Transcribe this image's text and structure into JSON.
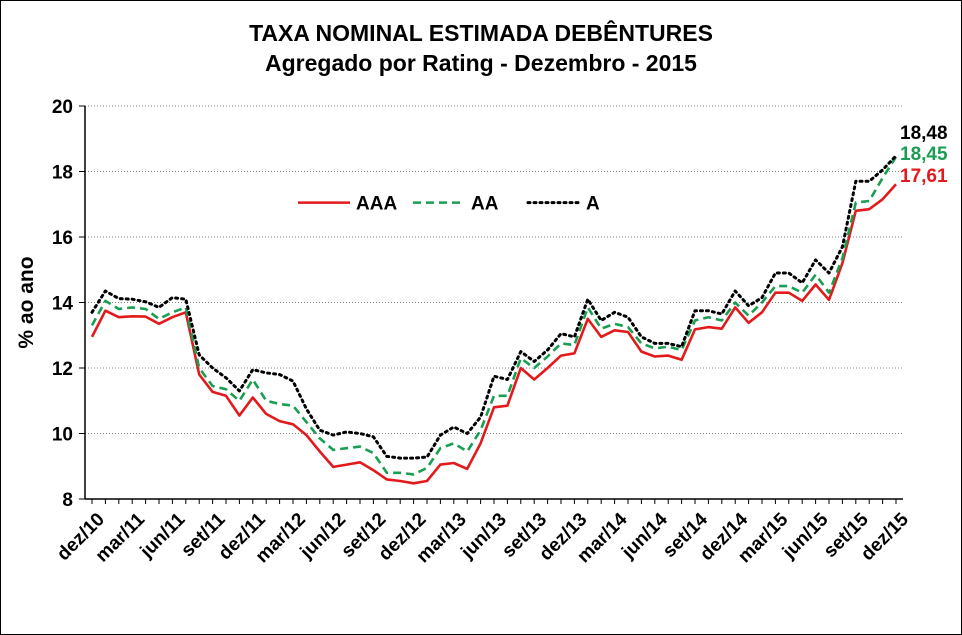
{
  "chart_data": {
    "type": "line",
    "title": "TAXA NOMINAL ESTIMADA DEBÊNTURES",
    "subtitle": "Agregado por Rating  - Dezembro - 2015",
    "xlabel": "",
    "ylabel": "% ao ano",
    "ylim": [
      8,
      20
    ],
    "yticks": [
      "8",
      "10",
      "12",
      "14",
      "16",
      "18",
      "20"
    ],
    "grid": true,
    "legend_position": "upper-left inside plot",
    "xtick_labels": [
      "dez/10",
      "mar/11",
      "jun/11",
      "set/11",
      "dez/11",
      "mar/12",
      "jun/12",
      "set/12",
      "dez/12",
      "mar/13",
      "jun/13",
      "set/13",
      "dez/13",
      "mar/14",
      "jun/14",
      "set/14",
      "dez/14",
      "mar/15",
      "jun/15",
      "set/15",
      "dez/15"
    ],
    "x": [
      "dez/10",
      "jan/11",
      "fev/11",
      "mar/11",
      "abr/11",
      "mai/11",
      "jun/11",
      "jul/11",
      "ago/11",
      "set/11",
      "out/11",
      "nov/11",
      "dez/11",
      "jan/12",
      "fev/12",
      "mar/12",
      "abr/12",
      "mai/12",
      "jun/12",
      "jul/12",
      "ago/12",
      "set/12",
      "out/12",
      "nov/12",
      "dez/12",
      "jan/13",
      "fev/13",
      "mar/13",
      "abr/13",
      "mai/13",
      "jun/13",
      "jul/13",
      "ago/13",
      "set/13",
      "out/13",
      "nov/13",
      "dez/13",
      "jan/14",
      "fev/14",
      "mar/14",
      "abr/14",
      "mai/14",
      "jun/14",
      "jul/14",
      "ago/14",
      "set/14",
      "out/14",
      "nov/14",
      "dez/14",
      "jan/15",
      "fev/15",
      "mar/15",
      "abr/15",
      "mai/15",
      "jun/15",
      "jul/15",
      "ago/15",
      "set/15",
      "out/15",
      "nov/15",
      "dez/15"
    ],
    "series": [
      {
        "name": "AAA",
        "color": "#e31a1c",
        "style": "solid",
        "end_label": "17,61",
        "values": [
          12.95,
          13.75,
          13.55,
          13.58,
          13.57,
          13.35,
          13.55,
          13.7,
          11.8,
          11.27,
          11.15,
          10.55,
          11.1,
          10.6,
          10.38,
          10.28,
          9.95,
          9.45,
          8.98,
          9.05,
          9.12,
          8.88,
          8.6,
          8.55,
          8.48,
          8.55,
          9.05,
          9.1,
          8.92,
          9.7,
          10.8,
          10.85,
          12.0,
          11.65,
          12.0,
          12.38,
          12.45,
          13.5,
          12.95,
          13.15,
          13.1,
          12.5,
          12.35,
          12.38,
          12.25,
          13.18,
          13.25,
          13.2,
          13.85,
          13.38,
          13.7,
          14.3,
          14.3,
          14.05,
          14.55,
          14.08,
          15.2,
          16.8,
          16.85,
          17.15,
          17.61
        ]
      },
      {
        "name": "AA",
        "color": "#1a9e52",
        "style": "dashed",
        "end_label": "18,45",
        "values": [
          13.3,
          14.05,
          13.8,
          13.85,
          13.8,
          13.5,
          13.7,
          13.85,
          12.0,
          11.45,
          11.35,
          11.0,
          11.65,
          11.0,
          10.9,
          10.85,
          10.35,
          9.85,
          9.5,
          9.55,
          9.6,
          9.4,
          8.8,
          8.8,
          8.75,
          8.95,
          9.55,
          9.7,
          9.45,
          10.1,
          11.15,
          11.15,
          12.3,
          12.0,
          12.35,
          12.75,
          12.7,
          13.85,
          13.2,
          13.35,
          13.25,
          12.75,
          12.6,
          12.65,
          12.55,
          13.45,
          13.55,
          13.45,
          14.0,
          13.6,
          14.0,
          14.5,
          14.5,
          14.3,
          14.85,
          14.3,
          15.35,
          17.05,
          17.1,
          17.8,
          18.45
        ]
      },
      {
        "name": "A",
        "color": "#000000",
        "style": "dotted",
        "end_label": "18,48",
        "values": [
          13.7,
          14.35,
          14.12,
          14.1,
          14.02,
          13.85,
          14.15,
          14.1,
          12.4,
          12.0,
          11.7,
          11.3,
          11.95,
          11.85,
          11.8,
          11.6,
          10.75,
          10.1,
          9.95,
          10.05,
          10.0,
          9.9,
          9.3,
          9.25,
          9.25,
          9.28,
          9.95,
          10.2,
          10.0,
          10.5,
          11.75,
          11.65,
          12.5,
          12.2,
          12.55,
          13.05,
          12.95,
          14.1,
          13.45,
          13.7,
          13.55,
          12.95,
          12.75,
          12.75,
          12.65,
          13.75,
          13.75,
          13.65,
          14.35,
          13.9,
          14.15,
          14.9,
          14.9,
          14.6,
          15.3,
          14.9,
          15.7,
          17.7,
          17.7,
          18.05,
          18.48
        ]
      }
    ]
  }
}
